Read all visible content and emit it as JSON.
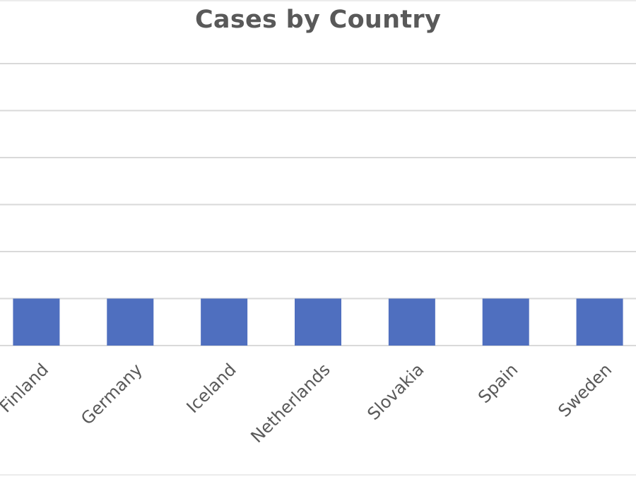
{
  "chart_data": {
    "type": "bar",
    "title": "Cases by Country",
    "xlabel": "",
    "ylabel": "",
    "categories": [
      "Finland",
      "Germany",
      "Iceland",
      "Netherlands",
      "Slovakia",
      "Spain",
      "Sweden"
    ],
    "values": [
      1,
      1,
      1,
      1,
      1,
      1,
      1
    ],
    "ylim": [
      0,
      6
    ],
    "grid": true,
    "legend": "none",
    "bar_color": "#4f6fbf",
    "gridline_color": "#d9d9d9",
    "text_color": "#595959"
  }
}
